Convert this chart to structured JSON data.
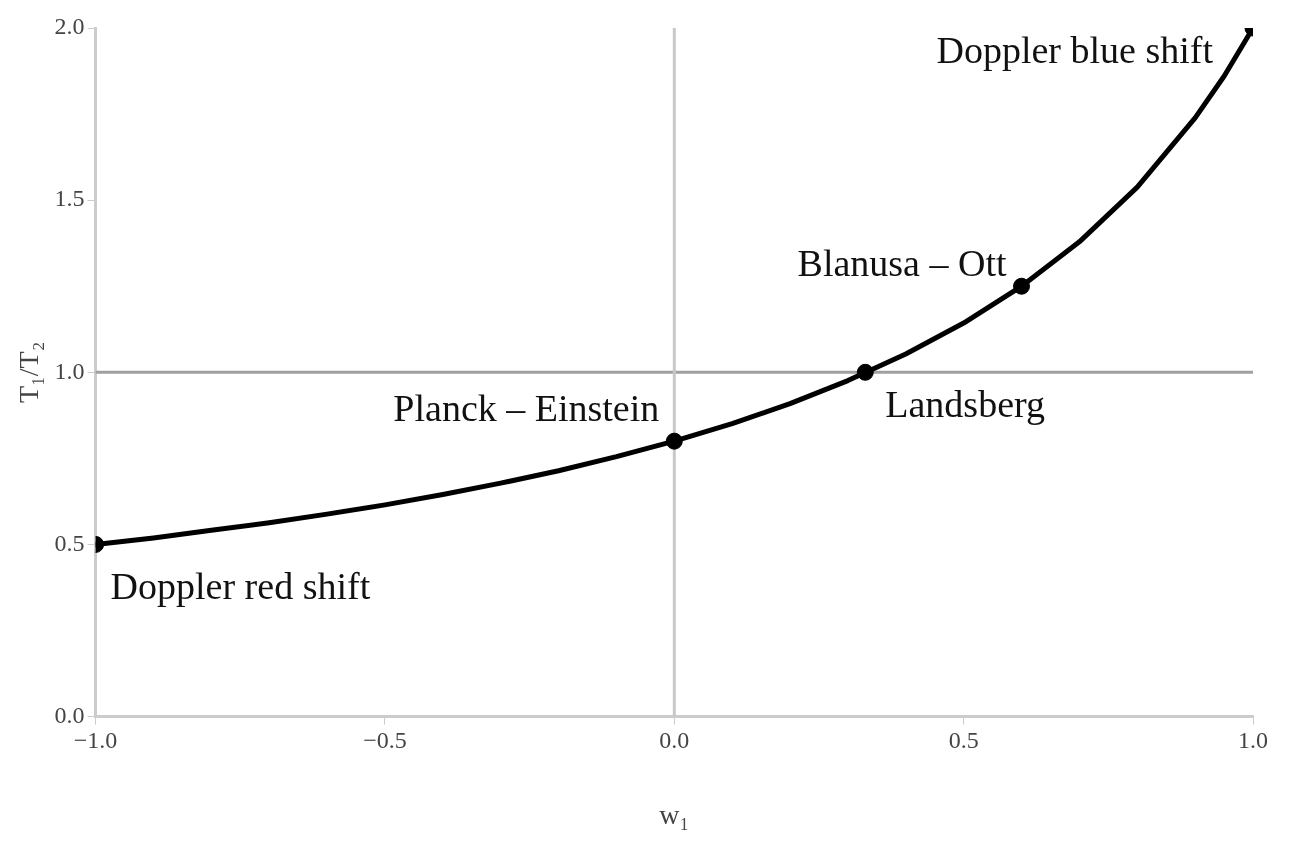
{
  "chart_data": {
    "type": "line",
    "xlabel": "w₁",
    "ylabel": "T₁/T₂",
    "xlim": [
      -1,
      1
    ],
    "ylim": [
      0,
      2
    ],
    "xticks": [
      {
        "value": -1,
        "label": "−1.0"
      },
      {
        "value": -0.5,
        "label": "−0.5"
      },
      {
        "value": 0,
        "label": "0.0"
      },
      {
        "value": 0.5,
        "label": "0.5"
      },
      {
        "value": 1,
        "label": "1.0"
      }
    ],
    "yticks": [
      {
        "value": 0,
        "label": "0.0"
      },
      {
        "value": 0.5,
        "label": "0.5"
      },
      {
        "value": 1,
        "label": "1.0"
      },
      {
        "value": 1.5,
        "label": "1.5"
      },
      {
        "value": 2,
        "label": "2.0"
      }
    ],
    "grid": false,
    "legend": false,
    "series": [
      {
        "color": "#000000",
        "marker": "none",
        "x": [
          -1,
          -0.9,
          -0.8,
          -0.7,
          -0.6,
          -0.5,
          -0.4,
          -0.3,
          -0.2,
          -0.1,
          0,
          0.1,
          0.2,
          0.3,
          0.4,
          0.5,
          0.6,
          0.7,
          0.8,
          0.9,
          0.95,
          1
        ],
        "values": [
          0.5,
          0.519,
          0.541,
          0.563,
          0.588,
          0.615,
          0.645,
          0.678,
          0.714,
          0.755,
          0.8,
          0.851,
          0.909,
          0.976,
          1.053,
          1.143,
          1.25,
          1.379,
          1.538,
          1.739,
          1.86,
          2.0
        ]
      },
      {
        "type": "scatter",
        "color": "#000000",
        "marker": "circle",
        "x": [
          -1,
          0,
          0.33,
          0.6,
          1
        ],
        "values": [
          0.5,
          0.8,
          1.0,
          1.25,
          2.0
        ]
      }
    ],
    "ref_lines": [
      {
        "axis": "y",
        "value": 1,
        "color": "#a0a0a0"
      },
      {
        "axis": "x",
        "value": 0,
        "color": "#c8c8c8"
      }
    ],
    "annotations": [
      {
        "text": "Doppler blue shift",
        "x": 1,
        "y": 2.0
      },
      {
        "text": "Blanusa – Ott",
        "x": 0.6,
        "y": 1.25
      },
      {
        "text": "Planck – Einstein",
        "x": 0,
        "y": 0.8
      },
      {
        "text": "Landsberg",
        "x": 0.33,
        "y": 1.0
      },
      {
        "text": "Doppler red shift",
        "x": -1,
        "y": 0.5
      }
    ]
  }
}
